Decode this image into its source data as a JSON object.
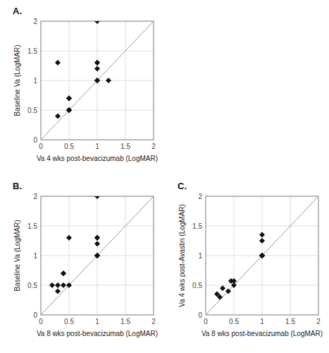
{
  "chart_data": [
    {
      "type": "scatter",
      "title": "A.",
      "x": [
        0.3,
        0.3,
        0.5,
        0.5,
        0.5,
        0.5,
        0.5,
        1.0,
        1.0,
        1.0,
        1.0,
        1.0,
        1.0,
        1.2
      ],
      "values": [
        1.3,
        0.4,
        0.5,
        0.5,
        0.5,
        0.7,
        0.7,
        2.0,
        1.3,
        1.3,
        1.2,
        1.0,
        1.0,
        1.0
      ],
      "xlabel": "Va 4 wks post-bevacizumab (LogMAR)",
      "ylabel": "Baseline Va (LogMAR)",
      "xlim": [
        0,
        2
      ],
      "ylim": [
        0,
        2
      ],
      "xticks": [
        0,
        0.5,
        1,
        1.5,
        2
      ],
      "yticks": [
        0,
        0.5,
        1,
        1.5,
        2
      ],
      "grid": true,
      "color": "#111111",
      "marker": "diamond"
    },
    {
      "type": "scatter",
      "title": "B.",
      "x": [
        0.2,
        0.3,
        0.3,
        0.4,
        0.4,
        0.4,
        0.5,
        0.5,
        1.0,
        1.0,
        1.0,
        1.0,
        1.0,
        1.0,
        1.0
      ],
      "values": [
        0.5,
        0.4,
        0.5,
        0.5,
        0.7,
        0.7,
        0.5,
        1.3,
        2.0,
        1.3,
        1.3,
        1.2,
        1.0,
        1.0,
        1.0
      ],
      "xlabel": "Va 8 wks post-bevacizumab (LogMAR)",
      "ylabel": "Baseline Va (LogMAR)",
      "xlim": [
        0,
        2
      ],
      "ylim": [
        0,
        2
      ],
      "xticks": [
        0,
        0.5,
        1,
        1.5,
        2
      ],
      "yticks": [
        0,
        0.5,
        1,
        1.5,
        2
      ],
      "grid": true,
      "color": "#111111",
      "marker": "diamond"
    },
    {
      "type": "scatter",
      "title": "C.",
      "x": [
        0.2,
        0.25,
        0.3,
        0.4,
        0.45,
        0.5,
        0.5,
        1.0,
        1.0,
        1.0,
        1.0,
        1.0,
        1.0,
        1.0,
        1.0
      ],
      "values": [
        0.35,
        0.3,
        0.45,
        0.4,
        0.57,
        0.57,
        0.5,
        1.35,
        1.25,
        1.0,
        1.0,
        1.0,
        1.0,
        1.0,
        1.0
      ],
      "xlabel": "Va 8 wks post-bevacizumab (LogMAR)",
      "ylabel": "Va 4 wks post-Avastin (LogMAR)",
      "xlim": [
        0,
        2
      ],
      "ylim": [
        0,
        2
      ],
      "xticks": [
        0,
        0.5,
        1,
        1.5,
        2
      ],
      "yticks": [
        0,
        0.5,
        1,
        1.5,
        2
      ],
      "grid": true,
      "color": "#111111",
      "marker": "diamond"
    }
  ]
}
